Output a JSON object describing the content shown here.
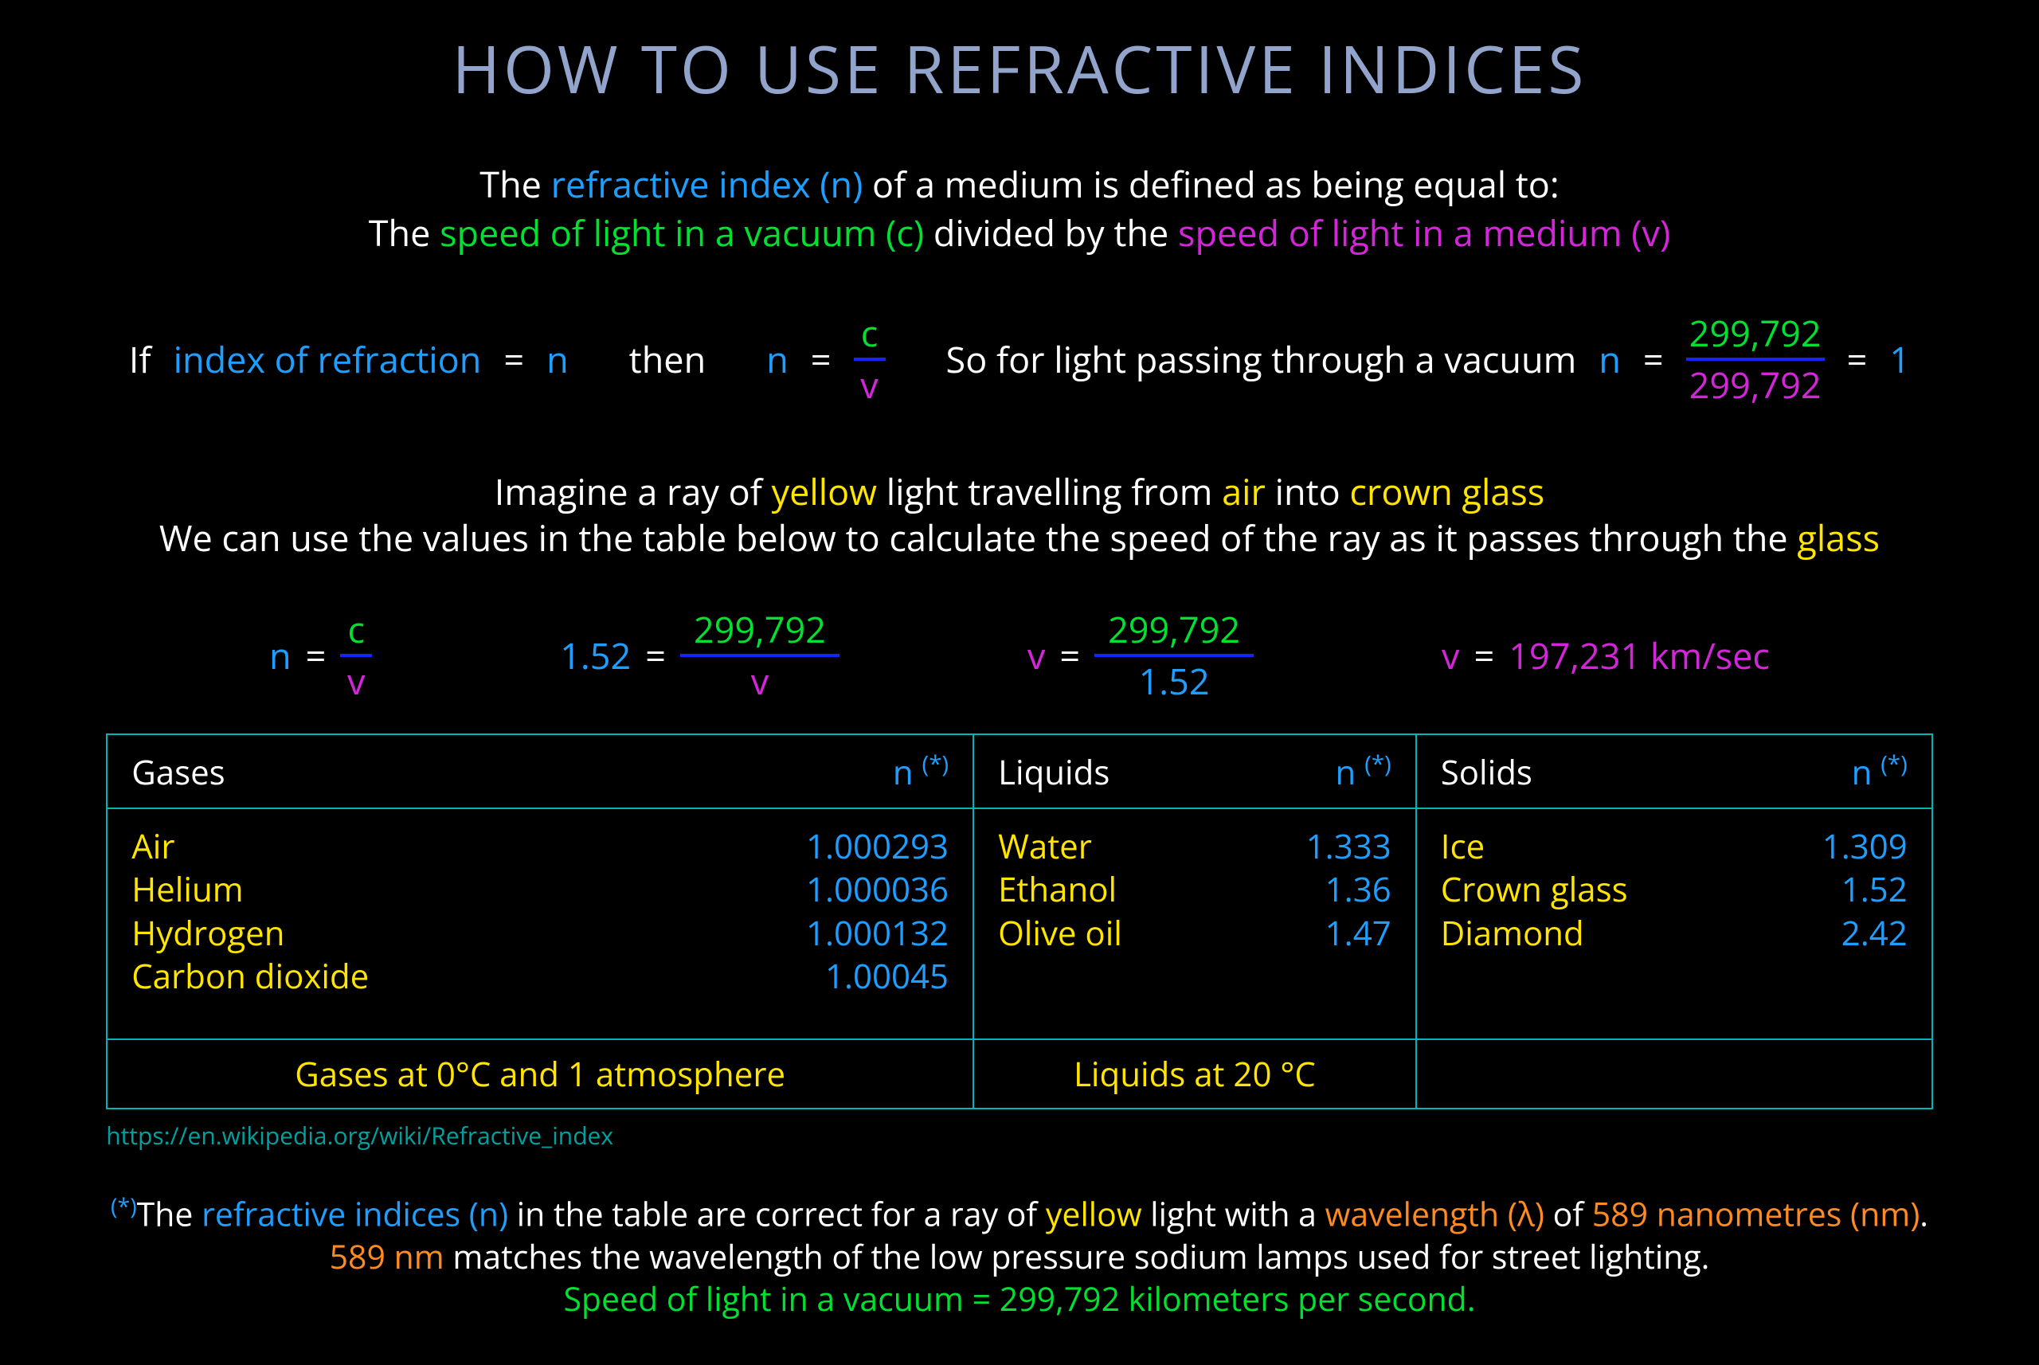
{
  "colors": {
    "bg": "#000000",
    "title": "#92a4cc",
    "white": "#ffffff",
    "blue": "#1e9fff",
    "cyan": "#00dca1",
    "green": "#00e031",
    "magenta": "#d326d9",
    "yellow": "#ffe400",
    "orange": "#ff8a1f",
    "fracbar": "#1426ff",
    "tableborder": "#00b5b5",
    "tealtext": "#00a0a0"
  },
  "title": "HOW TO USE REFRACTIVE INDICES",
  "intro": {
    "l1_pre": "The ",
    "l1_ri": "refractive index (n)",
    "l1_post": " of a medium is defined as being equal to:",
    "l2_pre": "The ",
    "l2_c": "speed of light in a vacuum (c)",
    "l2_mid": " divided by the ",
    "l2_v": "speed of light in a medium (v)"
  },
  "f1": {
    "if": "If",
    "ior": "index of refraction",
    "eq1": "=",
    "n1": "n",
    "then": "then",
    "n2": "n",
    "eq2": "=",
    "frac1_num": "c",
    "frac1_den": "v",
    "so": "So for light passing through a vacuum",
    "n3": "n",
    "eq3": "=",
    "frac2_num": "299,792",
    "frac2_den": "299,792",
    "eq4": "=",
    "one": "1"
  },
  "example": {
    "l1_pre": "Imagine a ray of ",
    "l1_yellow": "yellow",
    "l1_mid1": " light travelling from ",
    "l1_air": "air",
    "l1_mid2": " into ",
    "l1_glass": "crown glass",
    "l2_pre": "We can use the values in the table below to calculate the speed of the ray as it passes through the ",
    "l2_glass": "glass"
  },
  "f2": {
    "a_n": "n",
    "a_eq": "=",
    "a_num": "c",
    "a_den": "v",
    "b_lhs": "1.52",
    "b_eq": "=",
    "b_num": "299,792",
    "b_den": "v",
    "c_lhs": "v",
    "c_eq": "=",
    "c_num": "299,792",
    "c_den": "1.52",
    "d_lhs": "v",
    "d_eq": "=",
    "d_rhs": "197,231 km/sec"
  },
  "table": {
    "n_label": "n ",
    "n_star": "(*)",
    "cols": [
      {
        "header": "Gases",
        "rows": [
          {
            "name": "Air",
            "n": "1.000293"
          },
          {
            "name": "Helium",
            "n": "1.000036"
          },
          {
            "name": "Hydrogen",
            "n": "1.000132"
          },
          {
            "name": "Carbon dioxide",
            "n": "1.00045"
          }
        ],
        "cond": "Gases at 0°C and 1 atmosphere"
      },
      {
        "header": "Liquids",
        "rows": [
          {
            "name": "Water",
            "n": "1.333"
          },
          {
            "name": "Ethanol",
            "n": "1.36"
          },
          {
            "name": "Olive oil",
            "n": "1.47"
          }
        ],
        "cond": "Liquids at 20 °C"
      },
      {
        "header": "Solids",
        "rows": [
          {
            "name": "Ice",
            "n": "1.309"
          },
          {
            "name": "Crown glass",
            "n": "1.52"
          },
          {
            "name": "Diamond",
            "n": "2.42"
          }
        ],
        "cond": ""
      }
    ]
  },
  "source": "https://en.wikipedia.org/wiki/Refractive_index",
  "foot": {
    "star": "(*)",
    "l1_pre": "The ",
    "l1_ri": "refractive indices (n)",
    "l1_mid1": " in the table are correct for a ray of ",
    "l1_yellow": "yellow",
    "l1_mid2": " light with a  ",
    "l1_wl": "wavelength (λ)",
    "l1_mid3": " of ",
    "l1_nm": "589 nanometres (nm)",
    "l1_dot": ".",
    "l2_nm": "589 nm",
    "l2_post": " matches the wavelength of the low pressure sodium lamps used for street lighting.",
    "l3_pre": "Speed of light in a vacuum  =  ",
    "l3_val": "299,792",
    "l3_post": " kilometers per second."
  }
}
